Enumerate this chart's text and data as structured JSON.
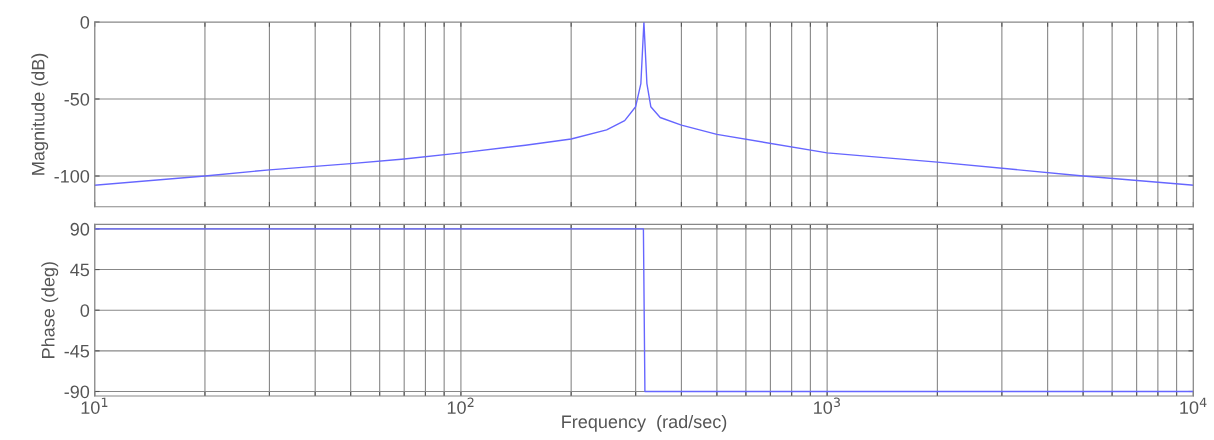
{
  "chart_data": [
    {
      "type": "line",
      "ylabel": "Magnitude (dB)",
      "log": "x",
      "grid": true,
      "tick_labels": "y",
      "xlim": [
        10,
        10000
      ],
      "ylim": [
        -120,
        0
      ],
      "yticks": [
        -100,
        -50,
        0
      ],
      "xticks": [
        {
          "value": 10,
          "label": null
        },
        {
          "value": 20,
          "label": null
        },
        {
          "value": 30,
          "label": null
        },
        {
          "value": 40,
          "label": null
        },
        {
          "value": 50,
          "label": null
        },
        {
          "value": 60,
          "label": null
        },
        {
          "value": 70,
          "label": null
        },
        {
          "value": 80,
          "label": null
        },
        {
          "value": 90,
          "label": null
        },
        {
          "value": 100,
          "label": null
        },
        {
          "value": 200,
          "label": null
        },
        {
          "value": 300,
          "label": null
        },
        {
          "value": 400,
          "label": null
        },
        {
          "value": 500,
          "label": null
        },
        {
          "value": 600,
          "label": null
        },
        {
          "value": 700,
          "label": null
        },
        {
          "value": 800,
          "label": null
        },
        {
          "value": 900,
          "label": null
        },
        {
          "value": 1000,
          "label": null
        },
        {
          "value": 2000,
          "label": null
        },
        {
          "value": 3000,
          "label": null
        },
        {
          "value": 4000,
          "label": null
        },
        {
          "value": 5000,
          "label": null
        },
        {
          "value": 6000,
          "label": null
        },
        {
          "value": 7000,
          "label": null
        },
        {
          "value": 8000,
          "label": null
        },
        {
          "value": 9000,
          "label": null
        },
        {
          "value": 10000,
          "label": null
        }
      ],
      "series": [
        {
          "color": "#6666ff",
          "x": [
            10,
            20,
            30,
            50,
            70,
            100,
            150,
            200,
            250,
            280,
            300,
            310,
            316,
            322,
            330,
            350,
            400,
            500,
            1000,
            2000,
            5000,
            10000
          ],
          "values": [
            -106,
            -100,
            -96,
            -92,
            -89,
            -85,
            -80,
            -76,
            -70,
            -64,
            -55,
            -40,
            0,
            -40,
            -55,
            -62,
            -67,
            -73,
            -85,
            -91,
            -100,
            -106
          ]
        }
      ]
    },
    {
      "type": "line",
      "ylabel": "Phase (deg)",
      "xlabel": "Frequency  (rad/sec)",
      "log": "x",
      "grid": true,
      "xlim": [
        10,
        10000
      ],
      "ylim": [
        -95,
        95
      ],
      "yticks": [
        -90,
        -45,
        0,
        45,
        90
      ],
      "xticks": [
        {
          "value": 10,
          "label": "10$^{1}$"
        },
        {
          "value": 20,
          "label": null
        },
        {
          "value": 30,
          "label": null
        },
        {
          "value": 40,
          "label": null
        },
        {
          "value": 50,
          "label": null
        },
        {
          "value": 60,
          "label": null
        },
        {
          "value": 70,
          "label": null
        },
        {
          "value": 80,
          "label": null
        },
        {
          "value": 90,
          "label": null
        },
        {
          "value": 100,
          "label": "10$^{2}$"
        },
        {
          "value": 200,
          "label": null
        },
        {
          "value": 300,
          "label": null
        },
        {
          "value": 400,
          "label": null
        },
        {
          "value": 500,
          "label": null
        },
        {
          "value": 600,
          "label": null
        },
        {
          "value": 700,
          "label": null
        },
        {
          "value": 800,
          "label": null
        },
        {
          "value": 900,
          "label": null
        },
        {
          "value": 1000,
          "label": "10$^{3}$"
        },
        {
          "value": 2000,
          "label": null
        },
        {
          "value": 3000,
          "label": null
        },
        {
          "value": 4000,
          "label": null
        },
        {
          "value": 5000,
          "label": null
        },
        {
          "value": 6000,
          "label": null
        },
        {
          "value": 7000,
          "label": null
        },
        {
          "value": 8000,
          "label": null
        },
        {
          "value": 9000,
          "label": null
        },
        {
          "value": 10000,
          "label": "10$^{4}$"
        }
      ],
      "series": [
        {
          "color": "#6666ff",
          "x": [
            10,
            315,
            318,
            10000
          ],
          "values": [
            90,
            90,
            -90,
            -90
          ]
        }
      ]
    }
  ]
}
